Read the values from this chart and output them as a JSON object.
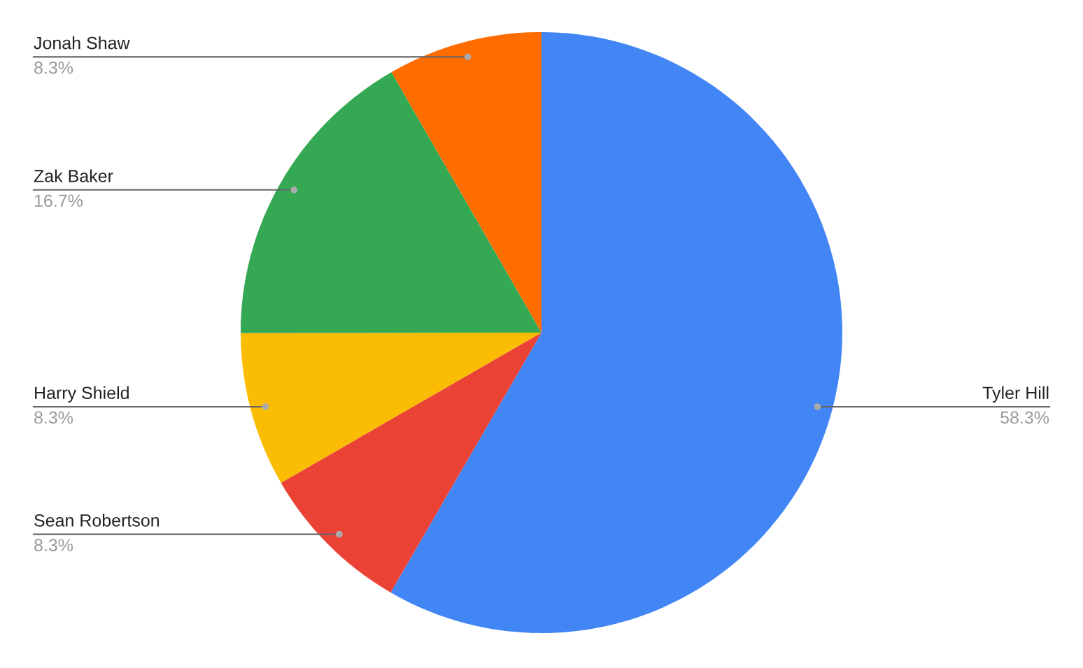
{
  "chart_data": {
    "type": "pie",
    "categories": [
      "Tyler Hill",
      "Sean Robertson",
      "Harry Shield",
      "Zak Baker",
      "Jonah Shaw"
    ],
    "values": [
      58.3,
      8.3,
      8.3,
      16.7,
      8.3
    ],
    "value_labels": [
      "58.3%",
      "8.3%",
      "8.3%",
      "16.7%",
      "8.3%"
    ],
    "colors": [
      "#4285f4",
      "#ea4335",
      "#fbbc04",
      "#34a853",
      "#ff6d01"
    ],
    "legend": false
  }
}
